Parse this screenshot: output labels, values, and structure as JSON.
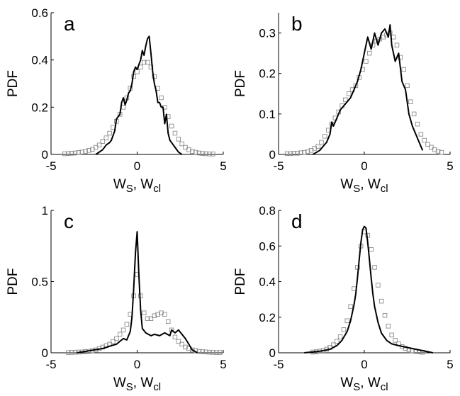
{
  "chart_data": [
    {
      "type": "line",
      "panel": "a",
      "xlabel_main": "W",
      "xlabel_sub1": "S",
      "xlabel_sep": ", ",
      "xlabel_main2": "W",
      "xlabel_sub2": "cl",
      "ylabel": "PDF",
      "xlim": [
        -5,
        5
      ],
      "ylim": [
        0,
        0.6
      ],
      "xticks": [
        -5,
        0,
        5
      ],
      "xtick_labels": [
        "-5",
        "0",
        "5"
      ],
      "yticks": [
        0,
        0.2,
        0.4,
        0.6
      ],
      "ytick_labels": [
        "0",
        "0.2",
        "0.4",
        "0.6"
      ],
      "series": [
        {
          "style": "line",
          "color": "#000000",
          "x": [
            -2.4,
            -2.0,
            -1.8,
            -1.6,
            -1.5,
            -1.3,
            -1.2,
            -1.0,
            -0.9,
            -0.8,
            -0.7,
            -0.6,
            -0.5,
            -0.4,
            -0.3,
            -0.2,
            -0.1,
            0.0,
            0.1,
            0.2,
            0.3,
            0.4,
            0.5,
            0.6,
            0.7,
            0.8,
            0.9,
            1.0,
            1.1,
            1.2,
            1.3,
            1.4,
            1.5,
            1.6,
            1.7,
            1.8,
            1.9,
            2.0,
            2.2,
            2.4,
            2.6
          ],
          "y": [
            0.0,
            0.02,
            0.04,
            0.05,
            0.06,
            0.1,
            0.15,
            0.17,
            0.22,
            0.24,
            0.21,
            0.23,
            0.26,
            0.27,
            0.3,
            0.35,
            0.37,
            0.36,
            0.38,
            0.4,
            0.44,
            0.42,
            0.46,
            0.49,
            0.5,
            0.43,
            0.35,
            0.3,
            0.27,
            0.22,
            0.22,
            0.2,
            0.2,
            0.13,
            0.17,
            0.09,
            0.06,
            0.05,
            0.03,
            0.01,
            0.0
          ]
        },
        {
          "style": "markers",
          "color": "#8c8c8c",
          "x": [
            -4.2,
            -4.0,
            -3.8,
            -3.6,
            -3.4,
            -3.2,
            -3.0,
            -2.8,
            -2.6,
            -2.4,
            -2.2,
            -2.0,
            -1.8,
            -1.6,
            -1.4,
            -1.2,
            -1.0,
            -0.8,
            -0.6,
            -0.4,
            -0.2,
            0.0,
            0.2,
            0.4,
            0.6,
            0.8,
            1.0,
            1.2,
            1.4,
            1.6,
            1.8,
            2.0,
            2.2,
            2.4,
            2.6,
            2.8,
            3.0,
            3.2,
            3.4,
            3.6,
            3.8,
            4.0,
            4.2,
            4.4
          ],
          "y": [
            0.003,
            0.004,
            0.005,
            0.006,
            0.008,
            0.01,
            0.013,
            0.017,
            0.022,
            0.03,
            0.04,
            0.055,
            0.07,
            0.09,
            0.115,
            0.14,
            0.17,
            0.2,
            0.24,
            0.28,
            0.33,
            0.35,
            0.37,
            0.39,
            0.39,
            0.37,
            0.33,
            0.28,
            0.24,
            0.2,
            0.16,
            0.12,
            0.09,
            0.065,
            0.045,
            0.03,
            0.02,
            0.013,
            0.009,
            0.006,
            0.004,
            0.003,
            0.002,
            0.002
          ]
        }
      ]
    },
    {
      "type": "line",
      "panel": "b",
      "xlabel_main": "W",
      "xlabel_sub1": "S",
      "xlabel_sep": ", ",
      "xlabel_main2": "W",
      "xlabel_sub2": "cl",
      "ylabel": "PDF",
      "xlim": [
        -5,
        5
      ],
      "ylim": [
        0,
        0.35
      ],
      "xticks": [
        -5,
        0,
        5
      ],
      "xtick_labels": [
        "-5",
        "0",
        "5"
      ],
      "yticks": [
        0,
        0.1,
        0.2,
        0.3
      ],
      "ytick_labels": [
        "0",
        "0.1",
        "0.2",
        "0.3"
      ],
      "series": [
        {
          "style": "line",
          "color": "#000000",
          "x": [
            -3.0,
            -2.6,
            -2.4,
            -2.2,
            -2.0,
            -1.9,
            -1.8,
            -1.6,
            -1.4,
            -1.2,
            -1.0,
            -0.8,
            -0.6,
            -0.4,
            -0.2,
            0.0,
            0.2,
            0.4,
            0.6,
            0.8,
            1.0,
            1.2,
            1.4,
            1.5,
            1.6,
            1.8,
            2.0,
            2.2,
            2.4,
            2.6,
            2.8,
            3.0,
            3.2,
            3.4
          ],
          "y": [
            0.0,
            0.01,
            0.02,
            0.03,
            0.05,
            0.08,
            0.07,
            0.09,
            0.11,
            0.12,
            0.13,
            0.14,
            0.16,
            0.18,
            0.21,
            0.25,
            0.29,
            0.26,
            0.3,
            0.27,
            0.3,
            0.31,
            0.29,
            0.32,
            0.27,
            0.23,
            0.25,
            0.18,
            0.16,
            0.1,
            0.07,
            0.05,
            0.03,
            0.01
          ]
        },
        {
          "style": "markers",
          "color": "#8c8c8c",
          "x": [
            -4.5,
            -4.3,
            -4.1,
            -3.9,
            -3.7,
            -3.5,
            -3.3,
            -3.1,
            -2.9,
            -2.7,
            -2.5,
            -2.3,
            -2.1,
            -1.9,
            -1.7,
            -1.5,
            -1.3,
            -1.1,
            -0.9,
            -0.7,
            -0.5,
            -0.3,
            -0.1,
            0.1,
            0.3,
            0.5,
            0.7,
            0.9,
            1.1,
            1.3,
            1.5,
            1.7,
            1.9,
            2.1,
            2.3,
            2.5,
            2.7,
            2.9,
            3.1,
            3.3,
            3.5,
            3.7,
            3.9,
            4.1,
            4.3,
            4.5
          ],
          "y": [
            0.002,
            0.002,
            0.003,
            0.003,
            0.004,
            0.005,
            0.007,
            0.01,
            0.015,
            0.02,
            0.03,
            0.045,
            0.06,
            0.075,
            0.09,
            0.105,
            0.12,
            0.135,
            0.15,
            0.16,
            0.17,
            0.19,
            0.21,
            0.23,
            0.25,
            0.27,
            0.28,
            0.285,
            0.29,
            0.295,
            0.3,
            0.29,
            0.27,
            0.24,
            0.21,
            0.17,
            0.13,
            0.1,
            0.075,
            0.05,
            0.035,
            0.025,
            0.018,
            0.012,
            0.008,
            0.005
          ]
        }
      ]
    },
    {
      "type": "line",
      "panel": "c",
      "xlabel_main": "W",
      "xlabel_sub1": "S",
      "xlabel_sep": ", ",
      "xlabel_main2": "W",
      "xlabel_sub2": "cl",
      "ylabel": "PDF",
      "xlim": [
        -5,
        5
      ],
      "ylim": [
        0,
        1
      ],
      "xticks": [
        -5,
        0,
        5
      ],
      "xtick_labels": [
        "-5",
        "0",
        "5"
      ],
      "yticks": [
        0,
        0.5,
        1
      ],
      "ytick_labels": [
        "0",
        "0.5",
        "1"
      ],
      "series": [
        {
          "style": "line",
          "color": "#000000",
          "x": [
            -3.5,
            -3.0,
            -2.5,
            -2.0,
            -1.5,
            -1.2,
            -1.0,
            -0.8,
            -0.6,
            -0.4,
            -0.3,
            -0.2,
            -0.1,
            0.0,
            0.1,
            0.2,
            0.3,
            0.5,
            0.8,
            1.0,
            1.3,
            1.6,
            1.9,
            2.0,
            2.2,
            2.4,
            2.6,
            2.8,
            3.0,
            3.2,
            3.5
          ],
          "y": [
            0.0,
            0.01,
            0.02,
            0.03,
            0.05,
            0.06,
            0.08,
            0.1,
            0.09,
            0.15,
            0.25,
            0.45,
            0.7,
            0.85,
            0.55,
            0.3,
            0.17,
            0.14,
            0.12,
            0.13,
            0.12,
            0.14,
            0.12,
            0.16,
            0.14,
            0.16,
            0.13,
            0.1,
            0.06,
            0.02,
            0.0
          ]
        },
        {
          "style": "markers",
          "color": "#8c8c8c",
          "x": [
            -4.0,
            -3.8,
            -3.6,
            -3.4,
            -3.2,
            -3.0,
            -2.8,
            -2.6,
            -2.4,
            -2.2,
            -2.0,
            -1.8,
            -1.6,
            -1.4,
            -1.2,
            -1.0,
            -0.8,
            -0.6,
            -0.4,
            -0.2,
            0.0,
            0.2,
            0.4,
            0.6,
            0.8,
            1.0,
            1.2,
            1.4,
            1.6,
            1.8,
            2.0,
            2.2,
            2.4,
            2.6,
            2.8,
            3.0,
            3.2,
            3.4,
            3.6,
            3.8,
            4.0,
            4.2,
            4.4,
            4.6,
            4.8
          ],
          "y": [
            0.002,
            0.003,
            0.004,
            0.005,
            0.006,
            0.008,
            0.01,
            0.015,
            0.02,
            0.03,
            0.04,
            0.05,
            0.06,
            0.08,
            0.1,
            0.13,
            0.16,
            0.2,
            0.27,
            0.4,
            0.55,
            0.4,
            0.28,
            0.24,
            0.24,
            0.26,
            0.27,
            0.28,
            0.27,
            0.22,
            0.16,
            0.11,
            0.08,
            0.06,
            0.04,
            0.03,
            0.02,
            0.015,
            0.01,
            0.008,
            0.006,
            0.004,
            0.003,
            0.002,
            0.002
          ]
        }
      ]
    },
    {
      "type": "line",
      "panel": "d",
      "xlabel_main": "W",
      "xlabel_sub1": "S",
      "xlabel_sep": ", ",
      "xlabel_main2": "W",
      "xlabel_sub2": "cl",
      "ylabel": "PDF",
      "xlim": [
        -5,
        5
      ],
      "ylim": [
        0,
        0.8
      ],
      "xticks": [
        -5,
        0,
        5
      ],
      "xtick_labels": [
        "-5",
        "0",
        "5"
      ],
      "yticks": [
        0,
        0.2,
        0.4,
        0.6,
        0.8
      ],
      "ytick_labels": [
        "0",
        "0.2",
        "0.4",
        "0.6",
        "0.8"
      ],
      "series": [
        {
          "style": "line",
          "color": "#000000",
          "x": [
            -3.5,
            -3.0,
            -2.5,
            -2.0,
            -1.6,
            -1.3,
            -1.0,
            -0.8,
            -0.6,
            -0.5,
            -0.4,
            -0.3,
            -0.2,
            -0.1,
            0.0,
            0.1,
            0.2,
            0.3,
            0.4,
            0.5,
            0.6,
            0.8,
            1.0,
            1.3,
            1.6,
            2.0,
            2.5,
            3.0,
            3.5,
            4.0
          ],
          "y": [
            0.0,
            0.005,
            0.01,
            0.02,
            0.04,
            0.07,
            0.12,
            0.18,
            0.27,
            0.33,
            0.42,
            0.52,
            0.62,
            0.69,
            0.71,
            0.7,
            0.62,
            0.52,
            0.42,
            0.33,
            0.26,
            0.17,
            0.11,
            0.07,
            0.05,
            0.04,
            0.03,
            0.02,
            0.01,
            0.0
          ]
        },
        {
          "style": "markers",
          "color": "#8c8c8c",
          "x": [
            -3.0,
            -2.8,
            -2.6,
            -2.4,
            -2.2,
            -2.0,
            -1.8,
            -1.6,
            -1.4,
            -1.2,
            -1.0,
            -0.8,
            -0.6,
            -0.4,
            -0.2,
            0.0,
            0.2,
            0.4,
            0.6,
            0.8,
            1.0,
            1.2,
            1.4,
            1.6,
            1.8,
            2.0,
            2.2,
            2.4,
            2.6,
            2.8,
            3.0,
            3.2,
            3.4
          ],
          "y": [
            0.004,
            0.006,
            0.009,
            0.013,
            0.02,
            0.03,
            0.045,
            0.065,
            0.09,
            0.13,
            0.18,
            0.26,
            0.36,
            0.48,
            0.6,
            0.68,
            0.66,
            0.58,
            0.48,
            0.38,
            0.29,
            0.21,
            0.15,
            0.1,
            0.07,
            0.05,
            0.035,
            0.025,
            0.018,
            0.012,
            0.008,
            0.005,
            0.003
          ]
        }
      ]
    }
  ]
}
